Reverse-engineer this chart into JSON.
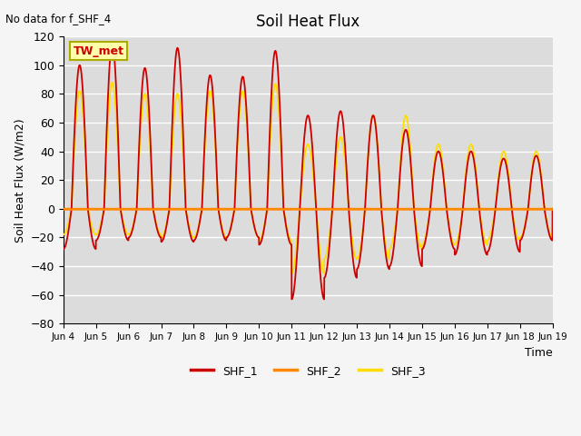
{
  "title": "Soil Heat Flux",
  "ylabel": "Soil Heat Flux (W/m2)",
  "xlabel": "Time",
  "ylim": [
    -80,
    120
  ],
  "xlim": [
    4,
    19
  ],
  "no_data_text": "No data for f_SHF_4",
  "tw_met_label": "TW_met",
  "legend_labels": [
    "SHF_1",
    "SHF_2",
    "SHF_3"
  ],
  "line_colors": [
    "#cc0000",
    "#ff8800",
    "#ffdd00"
  ],
  "hline_color": "#ff8800",
  "bg_color": "#dcdcdc",
  "fig_bg_color": "#f5f5f5",
  "grid_color": "#ffffff",
  "yticks": [
    -80,
    -60,
    -40,
    -20,
    0,
    20,
    40,
    60,
    80,
    100,
    120
  ],
  "xtick_labels": [
    "Jun 4",
    "Jun 5",
    "Jun 6",
    "Jun 7",
    "Jun 8",
    "Jun 9",
    "Jun 10",
    "Jun 11",
    "Jun 12",
    "Jun 13",
    "Jun 14",
    "Jun 15",
    "Jun 16",
    "Jun 17",
    "Jun 18",
    "Jun 19"
  ],
  "xtick_positions": [
    4,
    5,
    6,
    7,
    8,
    9,
    10,
    11,
    12,
    13,
    14,
    15,
    16,
    17,
    18,
    19
  ]
}
